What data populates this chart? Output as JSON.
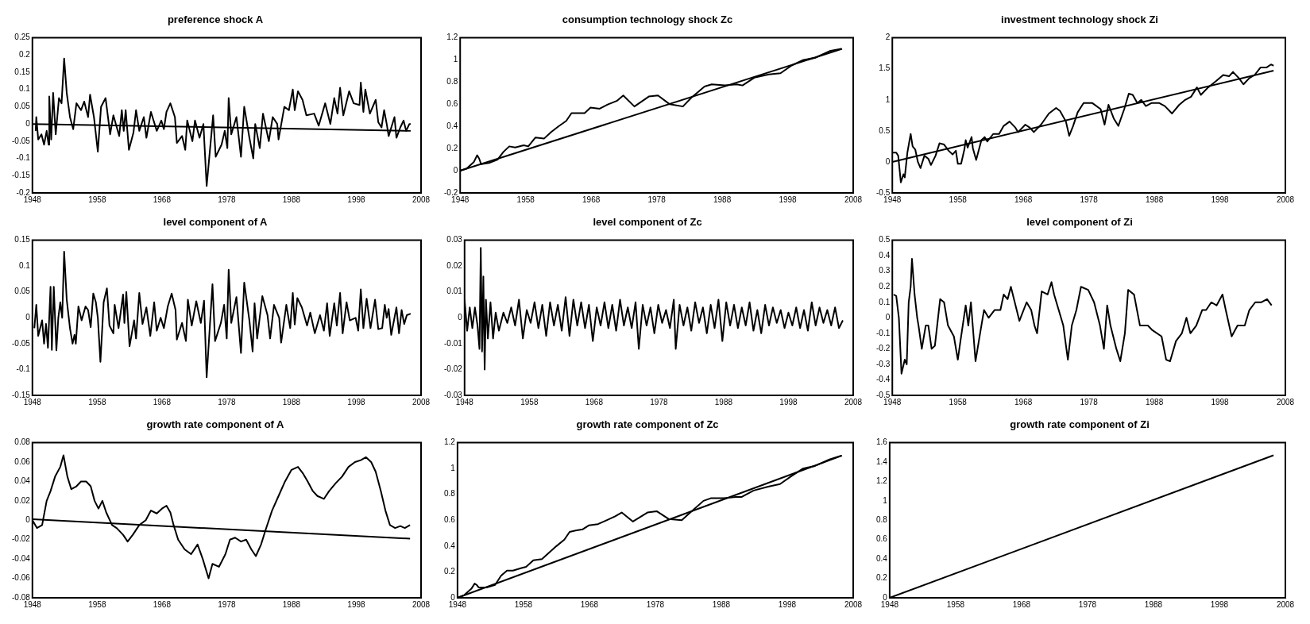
{
  "chart_data": [
    {
      "type": "line",
      "title": "preference shock A",
      "xlim": [
        1948,
        2008
      ],
      "xticks": [
        1948,
        1958,
        1968,
        1978,
        1988,
        1998,
        2008
      ],
      "ylim": [
        -0.2,
        0.25
      ],
      "yticks": [
        -0.2,
        -0.15,
        -0.1,
        -0.05,
        0,
        0.05,
        0.1,
        0.15,
        0.2,
        0.25
      ],
      "grid": false,
      "legend": false,
      "marker": "none",
      "line_style": "solid",
      "series": [
        {
          "color": "#000000",
          "x": [
            1948.5,
            1948.6,
            1948.9,
            1949.4,
            1949.8,
            1950.2,
            1950.5,
            1950.6,
            1950.9,
            1951.2,
            1951.6,
            1952.1,
            1952.5,
            1952.9,
            1953.3,
            1953.8,
            1954.3,
            1954.8,
            1955.5,
            1956.0,
            1956.6,
            1956.9,
            1957.5,
            1958.1,
            1958.6,
            1959.3,
            1960.0,
            1960.5,
            1961.4,
            1961.8,
            1962.1,
            1962.4,
            1962.9,
            1963.6,
            1964.0,
            1964.5,
            1965.2,
            1965.6,
            1966.3,
            1967.2,
            1967.9,
            1968.3,
            1968.7,
            1969.3,
            1970.0,
            1970.3,
            1971.1,
            1971.6,
            1971.9,
            1972.7,
            1973.1,
            1973.8,
            1974.4,
            1974.9,
            1975.9,
            1976.3,
            1977.2,
            1977.7,
            1978.1,
            1978.3,
            1978.7,
            1979.5,
            1980.2,
            1980.7,
            1981.5,
            1982.1,
            1982.4,
            1983.1,
            1983.6,
            1984.5,
            1985.1,
            1985.8,
            1986.0,
            1986.9,
            1987.6,
            1988.2,
            1988.5,
            1989.0,
            1989.7,
            1990.3,
            1991.5,
            1992.2,
            1993.2,
            1994.0,
            1994.6,
            1995.1,
            1995.5,
            1996.0,
            1996.9,
            1997.6,
            1998.5,
            1998.7,
            1999.1,
            1999.4,
            2000.1,
            2001.0,
            2001.4,
            2001.9,
            2002.3,
            2002.7,
            2003.0,
            2003.9,
            2004.2,
            2004.8,
            2005.3,
            2005.7,
            2006.2,
            2006.4
          ],
          "values": [
            -0.02,
            0.02,
            -0.045,
            -0.03,
            -0.06,
            -0.02,
            -0.06,
            0.08,
            -0.045,
            0.09,
            -0.03,
            0.075,
            0.06,
            0.19,
            0.09,
            0.02,
            -0.015,
            0.06,
            0.04,
            0.065,
            0.02,
            0.085,
            0.02,
            -0.08,
            0.05,
            0.075,
            -0.03,
            0.025,
            -0.035,
            0.04,
            -0.02,
            0.04,
            -0.075,
            -0.025,
            0.04,
            -0.02,
            0.02,
            -0.04,
            0.035,
            -0.02,
            0.01,
            -0.015,
            0.035,
            0.06,
            0.02,
            -0.055,
            -0.035,
            -0.075,
            0.01,
            -0.05,
            0.01,
            -0.04,
            0.0,
            -0.18,
            0.025,
            -0.095,
            -0.06,
            -0.02,
            -0.07,
            0.075,
            -0.03,
            0.02,
            -0.095,
            0.05,
            -0.04,
            -0.1,
            0.0,
            -0.07,
            0.03,
            -0.05,
            0.02,
            0.0,
            -0.045,
            0.05,
            0.04,
            0.1,
            0.04,
            0.095,
            0.07,
            0.025,
            0.03,
            -0.005,
            0.06,
            0.0,
            0.075,
            0.03,
            0.105,
            0.025,
            0.095,
            0.06,
            0.055,
            0.12,
            0.035,
            0.1,
            0.03,
            0.07,
            0.005,
            -0.01,
            0.04,
            0.0,
            -0.035,
            0.02,
            -0.04,
            -0.01,
            0.01,
            -0.02,
            0.0,
            0.0
          ]
        },
        {
          "color": "#000000",
          "x": [
            1948,
            2006.4
          ],
          "values": [
            0,
            -0.02
          ]
        }
      ]
    },
    {
      "type": "line",
      "title": "consumption technology shock Zc",
      "xlim": [
        1948,
        2008
      ],
      "xticks": [
        1948,
        1958,
        1968,
        1978,
        1988,
        1998,
        2008
      ],
      "ylim": [
        -0.2,
        1.2
      ],
      "yticks": [
        -0.2,
        0,
        0.2,
        0.4,
        0.6,
        0.8,
        1,
        1.2
      ],
      "grid": false,
      "legend": false,
      "marker": "none",
      "line_style": "solid",
      "series": [
        {
          "color": "#000000",
          "x": [
            1948,
            1949,
            1950.1,
            1950.6,
            1950.9,
            1951.2,
            1952.4,
            1953.7,
            1954.6,
            1955.5,
            1956.4,
            1957.7,
            1958.4,
            1959.5,
            1960.8,
            1961.9,
            1963.0,
            1964.2,
            1965.0,
            1965.9,
            1967.0,
            1967.9,
            1969.3,
            1970.6,
            1971.9,
            1972.9,
            1974.6,
            1976.8,
            1978.2,
            1980.0,
            1982.0,
            1983.3,
            1985.3,
            1986.4,
            1988.4,
            1990.2,
            1991.1,
            1992.9,
            1995.1,
            1996.9,
            1998.6,
            2000.4,
            2002.2,
            2004.4,
            2006.2
          ],
          "values": [
            0,
            0.02,
            0.08,
            0.14,
            0.11,
            0.06,
            0.07,
            0.1,
            0.17,
            0.22,
            0.21,
            0.23,
            0.22,
            0.3,
            0.29,
            0.35,
            0.4,
            0.45,
            0.52,
            0.52,
            0.52,
            0.57,
            0.56,
            0.6,
            0.63,
            0.68,
            0.58,
            0.67,
            0.68,
            0.6,
            0.58,
            0.66,
            0.76,
            0.78,
            0.77,
            0.78,
            0.77,
            0.84,
            0.87,
            0.88,
            0.95,
            1.0,
            1.02,
            1.08,
            1.1
          ]
        },
        {
          "color": "#000000",
          "x": [
            1948,
            2006.3
          ],
          "values": [
            0,
            1.1
          ]
        }
      ]
    },
    {
      "type": "line",
      "title": "investment technology shock Zi",
      "xlim": [
        1948,
        2008
      ],
      "xticks": [
        1948,
        1958,
        1968,
        1978,
        1988,
        1998,
        2008
      ],
      "ylim": [
        -0.5,
        2
      ],
      "yticks": [
        -0.5,
        0,
        0.5,
        1,
        1.5,
        2
      ],
      "grid": false,
      "legend": false,
      "marker": "none",
      "line_style": "solid",
      "series": [
        {
          "color": "#000000",
          "x": [
            1948.1,
            1948.6,
            1948.9,
            1949.3,
            1949.7,
            1949.9,
            1950.3,
            1950.8,
            1951.1,
            1951.5,
            1951.9,
            1952.3,
            1952.9,
            1953.5,
            1953.9,
            1954.6,
            1955.2,
            1955.9,
            1956.6,
            1957.2,
            1957.7,
            1958.0,
            1958.5,
            1959.0,
            1959.2,
            1959.5,
            1960.1,
            1960.3,
            1960.8,
            1961.6,
            1962.1,
            1962.5,
            1963.4,
            1964.3,
            1965.0,
            1965.9,
            1966.8,
            1967.2,
            1968.3,
            1969.0,
            1969.6,
            1970.7,
            1971.9,
            1973.0,
            1973.6,
            1974.5,
            1975.0,
            1975.6,
            1976.3,
            1977.2,
            1978.5,
            1979.8,
            1980.4,
            1981.0,
            1981.8,
            1982.5,
            1983.4,
            1984.1,
            1984.7,
            1985.4,
            1986.0,
            1986.7,
            1987.6,
            1988.7,
            1989.6,
            1990.7,
            1991.8,
            1992.7,
            1993.6,
            1994.5,
            1995.1,
            1996.2,
            1997.4,
            1998.5,
            1999.4,
            2000.0,
            2000.9,
            2001.6,
            2002.5,
            2003.3,
            2004.2,
            2005.1,
            2005.8,
            2006.2
          ],
          "values": [
            0.15,
            0.15,
            0.1,
            -0.33,
            -0.2,
            -0.25,
            0.15,
            0.45,
            0.25,
            0.2,
            0.0,
            -0.1,
            0.1,
            0.05,
            -0.05,
            0.1,
            0.3,
            0.28,
            0.18,
            0.12,
            0.18,
            -0.03,
            -0.03,
            0.2,
            0.35,
            0.23,
            0.4,
            0.22,
            0.03,
            0.35,
            0.4,
            0.33,
            0.45,
            0.45,
            0.58,
            0.65,
            0.55,
            0.48,
            0.6,
            0.55,
            0.48,
            0.6,
            0.78,
            0.87,
            0.82,
            0.65,
            0.42,
            0.58,
            0.8,
            0.95,
            0.95,
            0.85,
            0.6,
            0.92,
            0.7,
            0.58,
            0.85,
            1.1,
            1.08,
            0.95,
            1.0,
            0.9,
            0.95,
            0.95,
            0.9,
            0.78,
            0.92,
            1.0,
            1.05,
            1.2,
            1.08,
            1.2,
            1.3,
            1.4,
            1.38,
            1.45,
            1.35,
            1.25,
            1.35,
            1.4,
            1.52,
            1.52,
            1.57,
            1.55
          ]
        },
        {
          "color": "#000000",
          "x": [
            1948,
            2006.2
          ],
          "values": [
            0,
            1.47
          ]
        }
      ]
    },
    {
      "type": "line",
      "title": "level component of A",
      "xlim": [
        1948,
        2008
      ],
      "xticks": [
        1948,
        1958,
        1968,
        1978,
        1988,
        1998,
        2008
      ],
      "ylim": [
        -0.15,
        0.15
      ],
      "yticks": [
        -0.15,
        -0.1,
        -0.05,
        0,
        0.05,
        0.1,
        0.15
      ],
      "grid": false,
      "legend": false,
      "marker": "none",
      "line_style": "solid",
      "series": [
        {
          "color": "#000000",
          "x": [
            1948.3,
            1948.6,
            1948.9,
            1949.5,
            1949.8,
            1950.1,
            1950.4,
            1950.8,
            1951.0,
            1951.3,
            1951.7,
            1952.0,
            1952.3,
            1952.6,
            1952.9,
            1953.3,
            1953.8,
            1954.2,
            1954.5,
            1954.7,
            1955.1,
            1955.6,
            1956.2,
            1956.6,
            1957.0,
            1957.4,
            1957.8,
            1958.1,
            1958.5,
            1959.0,
            1959.5,
            1959.9,
            1960.5,
            1960.7,
            1961.3,
            1962.0,
            1962.2,
            1962.5,
            1963.0,
            1963.7,
            1964.0,
            1964.5,
            1965.0,
            1965.6,
            1966.2,
            1966.8,
            1967.2,
            1967.8,
            1968.3,
            1968.9,
            1969.5,
            1970.1,
            1970.3,
            1971.1,
            1971.7,
            1972.0,
            1972.6,
            1973.3,
            1974.0,
            1974.5,
            1974.9,
            1975.8,
            1976.2,
            1977.1,
            1977.6,
            1978.0,
            1978.3,
            1978.7,
            1979.5,
            1980.2,
            1980.7,
            1981.5,
            1982.0,
            1982.3,
            1982.7,
            1983.5,
            1984.3,
            1984.7,
            1985.3,
            1986.1,
            1986.4,
            1987.2,
            1987.8,
            1988.2,
            1988.5,
            1988.9,
            1989.6,
            1990.4,
            1990.9,
            1991.6,
            1992.4,
            1993.0,
            1993.5,
            1993.9,
            1994.6,
            1995.0,
            1995.5,
            1995.9,
            1996.5,
            1997.0,
            1997.9,
            1998.3,
            1998.7,
            1999.1,
            1999.6,
            2000.2,
            2000.9,
            2001.4,
            2002.0,
            2002.4,
            2002.7,
            2003.0,
            2003.4,
            2004.2,
            2004.6,
            2005.0,
            2005.4,
            2005.8,
            2006.4
          ],
          "values": [
            -0.02,
            0.025,
            -0.035,
            -0.005,
            -0.05,
            -0.012,
            -0.058,
            0.06,
            -0.062,
            0.06,
            -0.063,
            0.0,
            0.03,
            0.0,
            0.128,
            0.035,
            -0.02,
            -0.05,
            -0.033,
            -0.05,
            0.022,
            -0.005,
            0.022,
            0.015,
            -0.018,
            0.047,
            0.03,
            0.0,
            -0.085,
            0.03,
            0.057,
            -0.015,
            -0.03,
            0.025,
            -0.02,
            0.045,
            -0.01,
            0.05,
            -0.055,
            -0.005,
            -0.04,
            0.048,
            -0.012,
            0.02,
            -0.035,
            0.03,
            -0.025,
            0.0,
            -0.02,
            0.022,
            0.047,
            0.015,
            -0.042,
            -0.01,
            -0.045,
            0.035,
            -0.015,
            0.032,
            -0.01,
            0.033,
            -0.115,
            0.065,
            -0.045,
            -0.01,
            0.025,
            -0.04,
            0.093,
            -0.01,
            0.04,
            -0.068,
            0.068,
            -0.005,
            -0.065,
            0.028,
            -0.04,
            0.042,
            0.005,
            -0.04,
            0.025,
            0.0,
            -0.048,
            0.025,
            -0.02,
            0.048,
            -0.013,
            0.038,
            0.02,
            -0.015,
            0.01,
            -0.03,
            0.005,
            -0.025,
            0.028,
            -0.035,
            0.028,
            -0.015,
            0.048,
            -0.03,
            0.03,
            -0.005,
            0.0,
            -0.025,
            0.055,
            -0.02,
            0.037,
            -0.02,
            0.035,
            -0.022,
            -0.02,
            0.025,
            0.0,
            0.017,
            -0.033,
            0.02,
            -0.03,
            0.015,
            -0.012,
            0.005,
            0.008
          ]
        }
      ]
    },
    {
      "type": "line",
      "title": "level component of Zc",
      "xlim": [
        1948,
        2008
      ],
      "xticks": [
        1948,
        1958,
        1968,
        1978,
        1988,
        1998,
        2008
      ],
      "ylim": [
        -0.03,
        0.03
      ],
      "yticks": [
        -0.03,
        -0.02,
        -0.01,
        0,
        0.01,
        0.02,
        0.03
      ],
      "grid": false,
      "legend": false,
      "marker": "none",
      "line_style": "solid",
      "series": [
        {
          "color": "#000000",
          "x": [
            1948,
            1948.4,
            1948.8,
            1949.2,
            1949.6,
            1950,
            1950.3,
            1950.5,
            1950.7,
            1950.9,
            1951.1,
            1951.3,
            1951.6,
            1952,
            1952.4,
            1952.8,
            1953.3,
            1954,
            1954.6,
            1955.2,
            1955.8,
            1956.4,
            1957,
            1957.6,
            1958.2,
            1958.8,
            1959.4,
            1960,
            1960.6,
            1961.2,
            1961.8,
            1962.4,
            1963,
            1963.6,
            1964.2,
            1964.8,
            1965.4,
            1966,
            1966.6,
            1967.2,
            1967.8,
            1968.4,
            1969,
            1969.6,
            1970.2,
            1970.8,
            1971.4,
            1972,
            1972.6,
            1973.2,
            1973.8,
            1974.4,
            1974.9,
            1975.5,
            1976.1,
            1976.7,
            1977.3,
            1977.9,
            1978.5,
            1979.1,
            1979.7,
            1980.3,
            1980.6,
            1981.2,
            1981.8,
            1982.4,
            1983,
            1983.6,
            1984.2,
            1984.8,
            1985.4,
            1986,
            1986.6,
            1987.2,
            1987.8,
            1988.4,
            1989,
            1989.6,
            1990.2,
            1990.8,
            1991.4,
            1992,
            1992.6,
            1993.2,
            1993.8,
            1994.4,
            1995,
            1995.6,
            1996.2,
            1996.8,
            1997.4,
            1998,
            1998.6,
            1999.2,
            1999.8,
            2000.4,
            2001,
            2001.6,
            2002.2,
            2002.8,
            2003.4,
            2004,
            2004.6,
            2005.2,
            2005.8,
            2006.4
          ],
          "values": [
            0.007,
            -0.005,
            0.004,
            -0.004,
            0.004,
            -0.003,
            -0.012,
            0.027,
            -0.013,
            0.016,
            -0.02,
            0.007,
            -0.008,
            0.006,
            -0.008,
            0.002,
            -0.005,
            0.002,
            -0.002,
            0.004,
            -0.003,
            0.007,
            -0.008,
            0.003,
            -0.002,
            0.006,
            -0.004,
            0.005,
            -0.007,
            0.006,
            -0.003,
            0.005,
            -0.005,
            0.008,
            -0.007,
            0.007,
            -0.003,
            0.006,
            -0.004,
            0.005,
            -0.009,
            0.004,
            -0.003,
            0.006,
            -0.004,
            0.005,
            -0.005,
            0.007,
            -0.003,
            0.004,
            -0.004,
            0.006,
            -0.012,
            0.005,
            -0.003,
            0.004,
            -0.006,
            0.005,
            -0.002,
            0.003,
            -0.004,
            0.007,
            -0.012,
            0.005,
            -0.003,
            0.004,
            -0.005,
            0.006,
            -0.002,
            0.004,
            -0.006,
            0.005,
            -0.004,
            0.007,
            -0.009,
            0.006,
            -0.003,
            0.005,
            -0.004,
            0.004,
            -0.003,
            0.006,
            -0.005,
            0.003,
            -0.006,
            0.005,
            -0.003,
            0.004,
            -0.002,
            0.003,
            -0.004,
            0.002,
            -0.003,
            0.004,
            -0.004,
            0.003,
            -0.005,
            0.006,
            -0.003,
            0.004,
            -0.002,
            0.003,
            -0.003,
            0.004,
            -0.004,
            -0.001
          ]
        }
      ]
    },
    {
      "type": "line",
      "title": "level component of Zi",
      "xlim": [
        1948,
        2008
      ],
      "xticks": [
        1948,
        1958,
        1968,
        1978,
        1988,
        1998,
        2008
      ],
      "ylim": [
        -0.5,
        0.5
      ],
      "yticks": [
        -0.5,
        -0.4,
        -0.3,
        -0.2,
        -0.1,
        0,
        0.1,
        0.2,
        0.3,
        0.4,
        0.5
      ],
      "grid": false,
      "legend": false,
      "marker": "none",
      "line_style": "solid",
      "series": [
        {
          "color": "#000000",
          "x": [
            1948.2,
            1948.6,
            1949.0,
            1949.4,
            1949.9,
            1950.2,
            1950.5,
            1950.8,
            1951.0,
            1951.4,
            1951.8,
            1952.0,
            1952.5,
            1953.1,
            1953.5,
            1954.0,
            1954.5,
            1955.3,
            1955.9,
            1956.5,
            1957.4,
            1958.0,
            1958.4,
            1959.2,
            1959.6,
            1960.0,
            1960.7,
            1961.4,
            1962.0,
            1962.7,
            1963.6,
            1964.5,
            1965.0,
            1965.6,
            1966.1,
            1967.4,
            1968.5,
            1969.2,
            1969.7,
            1970.1,
            1970.8,
            1971.7,
            1972.3,
            1972.7,
            1973.4,
            1974.1,
            1974.8,
            1975.4,
            1976.1,
            1976.8,
            1977.9,
            1978.8,
            1979.7,
            1980.3,
            1980.8,
            1981.3,
            1982.2,
            1982.8,
            1983.5,
            1984.0,
            1984.9,
            1985.8,
            1987.0,
            1987.7,
            1989.1,
            1989.8,
            1990.4,
            1991.3,
            1992.2,
            1992.9,
            1993.5,
            1994.4,
            1995.3,
            1995.9,
            1996.7,
            1997.5,
            1998.4,
            1998.9,
            1999.8,
            2000.7,
            2001.8,
            2002.5,
            2003.4,
            2004.3,
            2005.2,
            2005.9
          ],
          "values": [
            0.15,
            0.14,
            0.0,
            -0.36,
            -0.27,
            -0.3,
            0.1,
            0.2,
            0.38,
            0.15,
            0.0,
            -0.05,
            -0.2,
            -0.05,
            -0.05,
            -0.2,
            -0.18,
            0.12,
            0.1,
            -0.05,
            -0.12,
            -0.27,
            -0.15,
            0.08,
            -0.05,
            0.1,
            -0.28,
            -0.1,
            0.05,
            0.0,
            0.05,
            0.05,
            0.15,
            0.12,
            0.2,
            -0.02,
            0.1,
            0.05,
            -0.05,
            -0.1,
            0.17,
            0.15,
            0.23,
            0.15,
            0.05,
            -0.05,
            -0.27,
            -0.05,
            0.05,
            0.2,
            0.18,
            0.1,
            -0.05,
            -0.2,
            0.08,
            -0.05,
            -0.2,
            -0.28,
            -0.1,
            0.18,
            0.15,
            -0.05,
            -0.05,
            -0.08,
            -0.12,
            -0.27,
            -0.28,
            -0.15,
            -0.1,
            0.0,
            -0.1,
            -0.05,
            0.05,
            0.05,
            0.1,
            0.08,
            0.15,
            0.05,
            -0.12,
            -0.05,
            -0.05,
            0.05,
            0.1,
            0.1,
            0.12,
            0.08
          ]
        }
      ]
    },
    {
      "type": "line",
      "title": "growth rate component of A",
      "xlim": [
        1948,
        2008
      ],
      "xticks": [
        1948,
        1958,
        1968,
        1978,
        1988,
        1998,
        2008
      ],
      "ylim": [
        -0.08,
        0.08
      ],
      "yticks": [
        -0.08,
        -0.06,
        -0.04,
        -0.02,
        0,
        0.02,
        0.04,
        0.06,
        0.08
      ],
      "grid": false,
      "legend": false,
      "marker": "none",
      "line_style": "solid",
      "series": [
        {
          "color": "#000000",
          "x": [
            1948,
            1948.7,
            1949.5,
            1950.2,
            1950.8,
            1951.5,
            1952.3,
            1952.8,
            1953.4,
            1954,
            1954.8,
            1955.5,
            1956.3,
            1957,
            1957.6,
            1958.2,
            1958.8,
            1959.4,
            1960.3,
            1961,
            1962,
            1962.7,
            1963.5,
            1964.5,
            1965.5,
            1966.3,
            1967.2,
            1968,
            1968.7,
            1969.3,
            1969.8,
            1970.5,
            1971.5,
            1972.5,
            1973.5,
            1974.3,
            1975.2,
            1975.8,
            1976.8,
            1977.8,
            1978.5,
            1979.3,
            1980.2,
            1981,
            1981.8,
            1982.5,
            1983.3,
            1984,
            1985,
            1986,
            1987,
            1988,
            1989,
            1989.8,
            1990.5,
            1991.3,
            1992,
            1993,
            1993.8,
            1994.8,
            1995.8,
            1996.8,
            1997.8,
            1998.7,
            1999.5,
            2000.3,
            2001,
            2001.8,
            2002.5,
            2003.2,
            2004,
            2004.8,
            2005.5,
            2006.3
          ],
          "values": [
            0.0,
            -0.008,
            -0.005,
            0.02,
            0.03,
            0.045,
            0.055,
            0.067,
            0.045,
            0.032,
            0.035,
            0.04,
            0.04,
            0.035,
            0.02,
            0.012,
            0.02,
            0.008,
            -0.005,
            -0.008,
            -0.015,
            -0.022,
            -0.015,
            -0.005,
            0.0,
            0.01,
            0.007,
            0.012,
            0.015,
            0.008,
            -0.005,
            -0.02,
            -0.03,
            -0.035,
            -0.025,
            -0.04,
            -0.06,
            -0.045,
            -0.048,
            -0.035,
            -0.02,
            -0.018,
            -0.022,
            -0.02,
            -0.03,
            -0.037,
            -0.025,
            -0.01,
            0.01,
            0.025,
            0.04,
            0.052,
            0.055,
            0.048,
            0.04,
            0.03,
            0.025,
            0.022,
            0.03,
            0.038,
            0.045,
            0.055,
            0.06,
            0.062,
            0.065,
            0.06,
            0.05,
            0.03,
            0.01,
            -0.005,
            -0.008,
            -0.006,
            -0.008,
            -0.005
          ]
        },
        {
          "color": "#000000",
          "x": [
            1948,
            2006.3
          ],
          "values": [
            0.001,
            -0.019
          ]
        }
      ]
    },
    {
      "type": "line",
      "title": "growth rate component of Zc",
      "xlim": [
        1948,
        2008
      ],
      "xticks": [
        1948,
        1958,
        1968,
        1978,
        1988,
        1998,
        2008
      ],
      "ylim": [
        0,
        1.2
      ],
      "yticks": [
        0,
        0.2,
        0.4,
        0.6,
        0.8,
        1,
        1.2
      ],
      "grid": false,
      "legend": false,
      "marker": "none",
      "line_style": "solid",
      "series": [
        {
          "color": "#000000",
          "x": [
            1948,
            1949,
            1950.1,
            1950.6,
            1950.9,
            1951.2,
            1952.4,
            1953.7,
            1954.6,
            1955.5,
            1956.4,
            1957.7,
            1958.4,
            1959.5,
            1960.8,
            1961.9,
            1963.0,
            1964.2,
            1965.0,
            1965.9,
            1967.0,
            1967.9,
            1969.3,
            1970.6,
            1971.9,
            1972.9,
            1974.6,
            1976.8,
            1978.2,
            1980.0,
            1982.0,
            1983.3,
            1985.3,
            1986.4,
            1988.4,
            1990.2,
            1991.1,
            1992.9,
            1995.1,
            1996.9,
            1998.6,
            2000.4,
            2002.2,
            2004.4,
            2006.2
          ],
          "values": [
            0,
            0.02,
            0.07,
            0.11,
            0.1,
            0.08,
            0.08,
            0.1,
            0.17,
            0.21,
            0.21,
            0.23,
            0.24,
            0.29,
            0.3,
            0.35,
            0.4,
            0.45,
            0.51,
            0.52,
            0.53,
            0.56,
            0.57,
            0.6,
            0.63,
            0.66,
            0.59,
            0.66,
            0.67,
            0.61,
            0.6,
            0.66,
            0.75,
            0.77,
            0.77,
            0.78,
            0.78,
            0.83,
            0.86,
            0.88,
            0.94,
            1.0,
            1.02,
            1.07,
            1.1
          ]
        },
        {
          "color": "#000000",
          "x": [
            1948,
            2006.3
          ],
          "values": [
            0,
            1.1
          ]
        }
      ]
    },
    {
      "type": "line",
      "title": "growth rate component of Zi",
      "xlim": [
        1948,
        2008
      ],
      "xticks": [
        1948,
        1958,
        1968,
        1978,
        1988,
        1998,
        2008
      ],
      "ylim": [
        0,
        1.6
      ],
      "yticks": [
        0,
        0.2,
        0.4,
        0.6,
        0.8,
        1,
        1.2,
        1.4,
        1.6
      ],
      "grid": false,
      "legend": false,
      "marker": "none",
      "line_style": "solid",
      "series": [
        {
          "color": "#000000",
          "x": [
            1948,
            2006.2
          ],
          "values": [
            0,
            1.47
          ]
        }
      ]
    }
  ]
}
